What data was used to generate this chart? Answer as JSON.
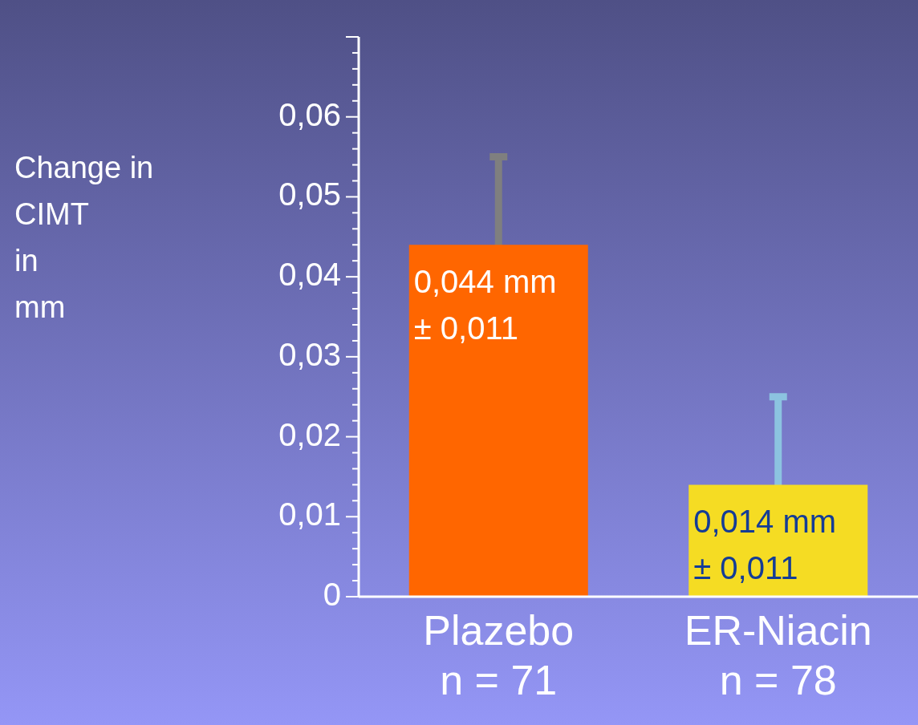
{
  "chart_data": {
    "type": "bar",
    "ylabel": "Change in\nCIMT\nin\nmm",
    "categories": [
      "Plazebo\nn = 71",
      "ER-Niacin\nn = 78"
    ],
    "values": [
      0.044,
      0.014
    ],
    "colors": [
      "#ff6600",
      "#f5dc23"
    ],
    "errors": [
      0.011,
      0.011
    ],
    "value_labels": [
      "0,044 mm\n± 0,011",
      "0,014 mm\n± 0,011"
    ],
    "ylim": [
      0,
      0.07
    ],
    "yticks": [
      {
        "value": 0,
        "label": "0"
      },
      {
        "value": 0.002,
        "label": null
      },
      {
        "value": 0.004,
        "label": null
      },
      {
        "value": 0.006,
        "label": null
      },
      {
        "value": 0.008,
        "label": null
      },
      {
        "value": 0.01,
        "label": "0,01"
      },
      {
        "value": 0.012,
        "label": null
      },
      {
        "value": 0.014,
        "label": null
      },
      {
        "value": 0.016,
        "label": null
      },
      {
        "value": 0.018,
        "label": null
      },
      {
        "value": 0.02,
        "label": "0,02"
      },
      {
        "value": 0.022,
        "label": null
      },
      {
        "value": 0.024,
        "label": null
      },
      {
        "value": 0.026,
        "label": null
      },
      {
        "value": 0.028,
        "label": null
      },
      {
        "value": 0.03,
        "label": "0,03"
      },
      {
        "value": 0.032,
        "label": null
      },
      {
        "value": 0.034,
        "label": null
      },
      {
        "value": 0.036,
        "label": null
      },
      {
        "value": 0.038,
        "label": null
      },
      {
        "value": 0.04,
        "label": "0,04"
      },
      {
        "value": 0.042,
        "label": null
      },
      {
        "value": 0.044,
        "label": null
      },
      {
        "value": 0.046,
        "label": null
      },
      {
        "value": 0.048,
        "label": null
      },
      {
        "value": 0.05,
        "label": "0,05"
      },
      {
        "value": 0.052,
        "label": null
      },
      {
        "value": 0.054,
        "label": null
      },
      {
        "value": 0.056,
        "label": null
      },
      {
        "value": 0.058,
        "label": null
      },
      {
        "value": 0.06,
        "label": "0,06"
      },
      {
        "value": 0.062,
        "label": null
      },
      {
        "value": 0.064,
        "label": null
      },
      {
        "value": 0.066,
        "label": null
      },
      {
        "value": 0.068,
        "label": null
      },
      {
        "value": 0.07,
        "label": null
      }
    ],
    "grid": false,
    "legend": false
  }
}
